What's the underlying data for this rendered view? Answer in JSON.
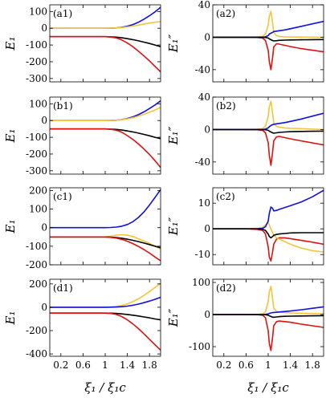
{
  "figure": {
    "xlabel": "ξ₁ / ξ₁c",
    "xticks": [
      0.2,
      0.6,
      1,
      1.4,
      1.8
    ],
    "xlim": [
      0,
      2
    ],
    "colors": {
      "blue": "#1010e0",
      "yellow": "#f2c53a",
      "black": "#000000",
      "red": "#e01010"
    }
  },
  "chart_data": [
    {
      "id": "a1",
      "type": "line",
      "tag": "(a1)",
      "ylabel": "E₁",
      "ylim": [
        -320,
        140
      ],
      "yticks": [
        100,
        0,
        -100,
        -200,
        -300
      ],
      "x": [
        0,
        0.2,
        0.4,
        0.6,
        0.8,
        1.0,
        1.1,
        1.2,
        1.3,
        1.4,
        1.5,
        1.6,
        1.7,
        1.8,
        1.9,
        2.0
      ],
      "series": [
        {
          "color": "blue",
          "values": [
            0,
            0,
            0,
            0,
            0,
            0,
            0.5,
            2,
            6,
            12,
            22,
            36,
            54,
            75,
            98,
            125
          ]
        },
        {
          "color": "yellow",
          "values": [
            0,
            0,
            0,
            0,
            0,
            0,
            0.5,
            2,
            4,
            8,
            13,
            19,
            25,
            31,
            36,
            40
          ]
        },
        {
          "color": "black",
          "values": [
            -50,
            -50,
            -50,
            -50,
            -50,
            -50,
            -51,
            -53,
            -57,
            -62,
            -68,
            -75,
            -83,
            -91,
            -100,
            -110
          ]
        },
        {
          "color": "red",
          "values": [
            -50,
            -50,
            -50,
            -50,
            -50,
            -50,
            -52,
            -58,
            -70,
            -88,
            -110,
            -137,
            -165,
            -195,
            -228,
            -260
          ]
        }
      ]
    },
    {
      "id": "a2",
      "type": "line",
      "tag": "(a2)",
      "ylabel": "E₁″",
      "ylim": [
        -55,
        40
      ],
      "yticks": [
        40,
        0,
        -40
      ],
      "x": [
        0,
        0.2,
        0.4,
        0.6,
        0.8,
        0.9,
        0.95,
        1.0,
        1.02,
        1.05,
        1.08,
        1.1,
        1.15,
        1.2,
        1.3,
        1.4,
        1.6,
        1.8,
        2.0
      ],
      "series": [
        {
          "color": "yellow",
          "values": [
            0,
            0,
            0,
            0,
            0.3,
            1,
            4,
            15,
            26,
            32,
            18,
            6,
            2,
            1,
            0.5,
            0.3,
            0.2,
            0.1,
            0
          ]
        },
        {
          "color": "red",
          "values": [
            0,
            0,
            0,
            0,
            -0.3,
            -1,
            -4,
            -16,
            -30,
            -40,
            -25,
            -12,
            -8,
            -8.5,
            -10,
            -11.5,
            -14,
            -16,
            -18
          ]
        },
        {
          "color": "blue",
          "values": [
            0,
            0,
            0,
            0,
            0,
            0,
            0.5,
            2,
            4,
            5,
            6,
            7,
            7.5,
            8,
            9,
            10.5,
            13.5,
            16.5,
            19.5
          ]
        },
        {
          "color": "black",
          "values": [
            0,
            0,
            0,
            0,
            0,
            0,
            -0.3,
            -1,
            -2,
            -3,
            -4,
            -4.5,
            -4.2,
            -3.8,
            -3.5,
            -3.3,
            -3.1,
            -2.9,
            -2.8
          ]
        }
      ]
    },
    {
      "id": "b1",
      "type": "line",
      "tag": "(b1)",
      "ylabel": "E₁",
      "ylim": [
        -320,
        140
      ],
      "yticks": [
        100,
        0,
        -100,
        -200,
        -300
      ],
      "x": [
        0,
        0.2,
        0.4,
        0.6,
        0.8,
        1.0,
        1.1,
        1.2,
        1.3,
        1.4,
        1.5,
        1.6,
        1.7,
        1.8,
        1.9,
        2.0
      ],
      "series": [
        {
          "color": "blue",
          "values": [
            0,
            0,
            0,
            0,
            0,
            0,
            0.5,
            2,
            6,
            12,
            22,
            35,
            52,
            72,
            93,
            118
          ]
        },
        {
          "color": "yellow",
          "values": [
            0,
            0,
            0,
            0,
            0,
            0,
            0.5,
            2,
            5,
            10,
            17,
            26,
            37,
            50,
            63,
            78
          ]
        },
        {
          "color": "black",
          "values": [
            -50,
            -50,
            -50,
            -50,
            -50,
            -50,
            -51,
            -53,
            -57,
            -62,
            -68,
            -75,
            -83,
            -91,
            -100,
            -108
          ]
        },
        {
          "color": "red",
          "values": [
            -50,
            -50,
            -50,
            -50,
            -50,
            -50,
            -52,
            -58,
            -70,
            -90,
            -113,
            -140,
            -170,
            -203,
            -240,
            -280
          ]
        }
      ]
    },
    {
      "id": "b2",
      "type": "line",
      "tag": "(b2)",
      "ylabel": "E₁″",
      "ylim": [
        -55,
        40
      ],
      "yticks": [
        40,
        0,
        -40
      ],
      "x": [
        0,
        0.2,
        0.4,
        0.6,
        0.8,
        0.9,
        0.95,
        1.0,
        1.02,
        1.05,
        1.08,
        1.1,
        1.15,
        1.2,
        1.3,
        1.4,
        1.6,
        1.8,
        2.0
      ],
      "series": [
        {
          "color": "yellow",
          "values": [
            0,
            0,
            0,
            0,
            0.3,
            1,
            4,
            16,
            28,
            35,
            20,
            8,
            4,
            3,
            2,
            1.5,
            1,
            0.5,
            0
          ]
        },
        {
          "color": "red",
          "values": [
            0,
            0,
            0,
            0,
            -0.3,
            -1,
            -4,
            -16,
            -32,
            -44,
            -28,
            -14,
            -9,
            -8.5,
            -10,
            -11.5,
            -14,
            -16.5,
            -19
          ]
        },
        {
          "color": "blue",
          "values": [
            0,
            0,
            0,
            0,
            0,
            0,
            0.5,
            2,
            3.5,
            5,
            6,
            6.5,
            7,
            7.5,
            8.5,
            10,
            13,
            16.5,
            20
          ]
        },
        {
          "color": "black",
          "values": [
            0,
            0,
            0,
            0,
            0,
            0,
            -0.3,
            -1,
            -2,
            -3,
            -4,
            -4.5,
            -4,
            -3.5,
            -3,
            -2.7,
            -2.4,
            -2.2,
            -2
          ]
        }
      ]
    },
    {
      "id": "c1",
      "type": "line",
      "tag": "(c1)",
      "ylabel": "E₁",
      "ylim": [
        -200,
        215
      ],
      "yticks": [
        200,
        100,
        0,
        -100,
        -200
      ],
      "x": [
        0,
        0.2,
        0.4,
        0.6,
        0.8,
        1.0,
        1.1,
        1.2,
        1.3,
        1.4,
        1.5,
        1.6,
        1.7,
        1.8,
        1.9,
        2.0
      ],
      "series": [
        {
          "color": "blue",
          "values": [
            0,
            0,
            0,
            0,
            0,
            0,
            1,
            3,
            8,
            17,
            32,
            55,
            85,
            122,
            163,
            205
          ]
        },
        {
          "color": "yellow",
          "values": [
            -50,
            -50,
            -50,
            -50,
            -50,
            -50,
            -46,
            -40,
            -38,
            -40,
            -48,
            -60,
            -72,
            -85,
            -100,
            -115
          ]
        },
        {
          "color": "black",
          "values": [
            -50,
            -50,
            -50,
            -50,
            -50,
            -50,
            -51,
            -53,
            -57,
            -62,
            -68,
            -75,
            -83,
            -91,
            -100,
            -108
          ]
        },
        {
          "color": "red",
          "values": [
            -50,
            -50,
            -50,
            -50,
            -50,
            -50,
            -52,
            -56,
            -63,
            -73,
            -86,
            -101,
            -118,
            -137,
            -158,
            -178
          ]
        }
      ]
    },
    {
      "id": "c2",
      "type": "line",
      "tag": "(c2)",
      "ylabel": "E₁″",
      "ylim": [
        -14,
        16
      ],
      "yticks": [
        10,
        0,
        -10
      ],
      "x": [
        0,
        0.2,
        0.4,
        0.6,
        0.8,
        0.9,
        0.95,
        1.0,
        1.02,
        1.05,
        1.08,
        1.1,
        1.15,
        1.2,
        1.3,
        1.4,
        1.6,
        1.8,
        2.0
      ],
      "series": [
        {
          "color": "red",
          "values": [
            0,
            0,
            0,
            0,
            -0.2,
            -0.6,
            -2,
            -7,
            -11,
            -12.5,
            -9,
            -6,
            -4,
            -3.5,
            -3.5,
            -3.8,
            -4.5,
            -5.2,
            -6
          ]
        },
        {
          "color": "yellow",
          "values": [
            0,
            0,
            0,
            0,
            0.2,
            0.6,
            1.5,
            2.5,
            1.5,
            0,
            -1.5,
            -2.5,
            -3.5,
            -4,
            -5,
            -6,
            -7.5,
            -8.5,
            -9
          ]
        },
        {
          "color": "blue",
          "values": [
            0,
            0,
            0,
            0,
            0,
            0.2,
            0.8,
            3,
            6,
            8.5,
            8,
            7,
            7.2,
            7.6,
            8.3,
            9,
            10.5,
            12.5,
            15
          ]
        },
        {
          "color": "black",
          "values": [
            0,
            0,
            0,
            0,
            0,
            -0.2,
            -0.6,
            -2,
            -3,
            -3.5,
            -3,
            -2.5,
            -2.2,
            -2,
            -1.8,
            -1.6,
            -1.5,
            -1.5,
            -1.5
          ]
        }
      ]
    },
    {
      "id": "d1",
      "type": "line",
      "tag": "(d1)",
      "ylabel": "E₁",
      "ylim": [
        -420,
        240
      ],
      "yticks": [
        200,
        0,
        -200,
        -400
      ],
      "x": [
        0,
        0.2,
        0.4,
        0.6,
        0.8,
        1.0,
        1.1,
        1.2,
        1.3,
        1.4,
        1.5,
        1.6,
        1.7,
        1.8,
        1.9,
        2.0
      ],
      "series": [
        {
          "color": "yellow",
          "values": [
            0,
            0,
            0,
            0,
            0,
            0,
            2,
            6,
            15,
            28,
            48,
            72,
            102,
            135,
            170,
            205
          ]
        },
        {
          "color": "blue",
          "values": [
            0,
            0,
            0,
            0,
            0,
            0,
            0.5,
            2,
            5,
            10,
            17,
            27,
            39,
            53,
            68,
            85
          ]
        },
        {
          "color": "black",
          "values": [
            -50,
            -50,
            -50,
            -50,
            -50,
            -50,
            -51,
            -53,
            -57,
            -62,
            -68,
            -75,
            -83,
            -91,
            -100,
            -108
          ]
        },
        {
          "color": "red",
          "values": [
            -50,
            -50,
            -50,
            -50,
            -50,
            -50,
            -53,
            -62,
            -80,
            -108,
            -143,
            -183,
            -228,
            -275,
            -322,
            -368
          ]
        }
      ]
    },
    {
      "id": "d2",
      "type": "line",
      "tag": "(d2)",
      "ylabel": "E₁″",
      "ylim": [
        -130,
        110
      ],
      "yticks": [
        100,
        0,
        -100
      ],
      "x": [
        0,
        0.2,
        0.4,
        0.6,
        0.8,
        0.9,
        0.95,
        1.0,
        1.02,
        1.05,
        1.08,
        1.1,
        1.15,
        1.2,
        1.3,
        1.4,
        1.6,
        1.8,
        2.0
      ],
      "series": [
        {
          "color": "yellow",
          "values": [
            0,
            0,
            0,
            0,
            0.5,
            2,
            8,
            40,
            70,
            88,
            50,
            20,
            10,
            8,
            6,
            5,
            4,
            3,
            2
          ]
        },
        {
          "color": "red",
          "values": [
            0,
            0,
            0,
            0,
            -0.5,
            -2,
            -10,
            -50,
            -90,
            -112,
            -70,
            -35,
            -22,
            -20,
            -22,
            -24,
            -30,
            -35,
            -40
          ]
        },
        {
          "color": "blue",
          "values": [
            0,
            0,
            0,
            0,
            0,
            0,
            0.5,
            2,
            3.5,
            5,
            6,
            6.5,
            7,
            8,
            9.5,
            11,
            15,
            19.5,
            24
          ]
        },
        {
          "color": "black",
          "values": [
            0,
            0,
            0,
            0,
            0,
            0,
            -0.5,
            -2,
            -4,
            -6,
            -8,
            -8.5,
            -7.5,
            -6.5,
            -5.5,
            -5,
            -4.5,
            -4,
            -3.5
          ]
        }
      ]
    }
  ]
}
